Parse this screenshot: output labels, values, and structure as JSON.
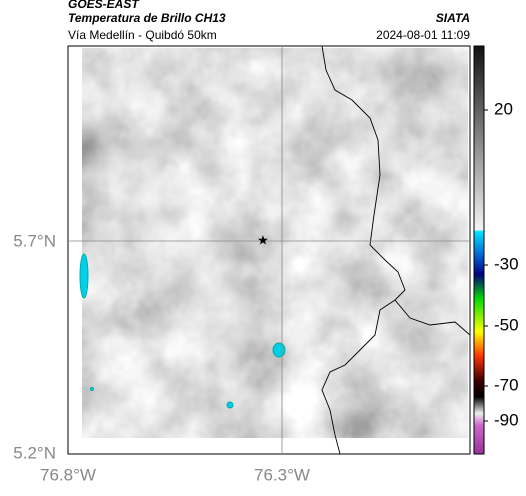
{
  "header": {
    "satellite": "GOES-EAST",
    "product": "Temperatura de Brillo CH13",
    "region": "Vía Medellín - Quibdó 50km",
    "source": "SIATA",
    "datetime": "2024-08-01 11:09"
  },
  "map": {
    "lat_labels": [
      "5.7°N",
      "5.2°N"
    ],
    "lon_labels": [
      "76.8°W",
      "76.3°W"
    ]
  },
  "colorbar": {
    "ticks": [
      "20",
      "-30",
      "-50",
      "-70",
      "-90"
    ]
  }
}
